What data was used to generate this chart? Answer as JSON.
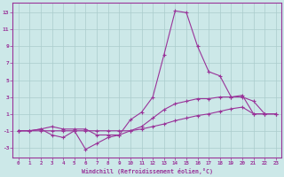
{
  "xlabel": "Windchill (Refroidissement éolien,°C)",
  "bg_color": "#cce8e8",
  "grid_color": "#aacccc",
  "line_color": "#993399",
  "xlim": [
    -0.5,
    23.5
  ],
  "ylim": [
    -4.2,
    14.2
  ],
  "yticks": [
    -3,
    -1,
    1,
    3,
    5,
    7,
    9,
    11,
    13
  ],
  "xticks": [
    0,
    1,
    2,
    3,
    4,
    5,
    6,
    7,
    8,
    9,
    10,
    11,
    12,
    13,
    14,
    15,
    16,
    17,
    18,
    19,
    20,
    21,
    22,
    23
  ],
  "line1_x": [
    0,
    1,
    2,
    3,
    4,
    5,
    6,
    7,
    8,
    9,
    10,
    11,
    12,
    13,
    14,
    15,
    16,
    17,
    18,
    19,
    20,
    21,
    22,
    23
  ],
  "line1_y": [
    -1,
    -1,
    -0.8,
    -0.5,
    -0.8,
    -0.8,
    -0.8,
    -1.5,
    -1.5,
    -1.5,
    0.3,
    1.2,
    3.0,
    8.0,
    13.2,
    13.0,
    9.0,
    6.0,
    5.5,
    3.0,
    3.0,
    2.5,
    1.0,
    1.0
  ],
  "line2_x": [
    0,
    1,
    2,
    3,
    4,
    5,
    6,
    7,
    8,
    9,
    10,
    11,
    12,
    13,
    14,
    15,
    16,
    17,
    18,
    19,
    20,
    21,
    22,
    23
  ],
  "line2_y": [
    -1,
    -1,
    -0.8,
    -1.5,
    -1.8,
    -1.0,
    -3.2,
    -2.5,
    -1.8,
    -1.5,
    -1.0,
    -0.5,
    0.5,
    1.5,
    2.2,
    2.5,
    2.8,
    2.8,
    3.0,
    3.0,
    3.2,
    1.0,
    1.0,
    1.0
  ],
  "line3_x": [
    0,
    1,
    2,
    3,
    4,
    5,
    6,
    7,
    8,
    9,
    10,
    11,
    12,
    13,
    14,
    15,
    16,
    17,
    18,
    19,
    20,
    21,
    22,
    23
  ],
  "line3_y": [
    -1,
    -1,
    -1,
    -1,
    -1,
    -1,
    -1,
    -1,
    -1,
    -1,
    -1,
    -0.8,
    -0.5,
    -0.2,
    0.2,
    0.5,
    0.8,
    1.0,
    1.3,
    1.6,
    1.8,
    1.0,
    1.0,
    1.0
  ]
}
